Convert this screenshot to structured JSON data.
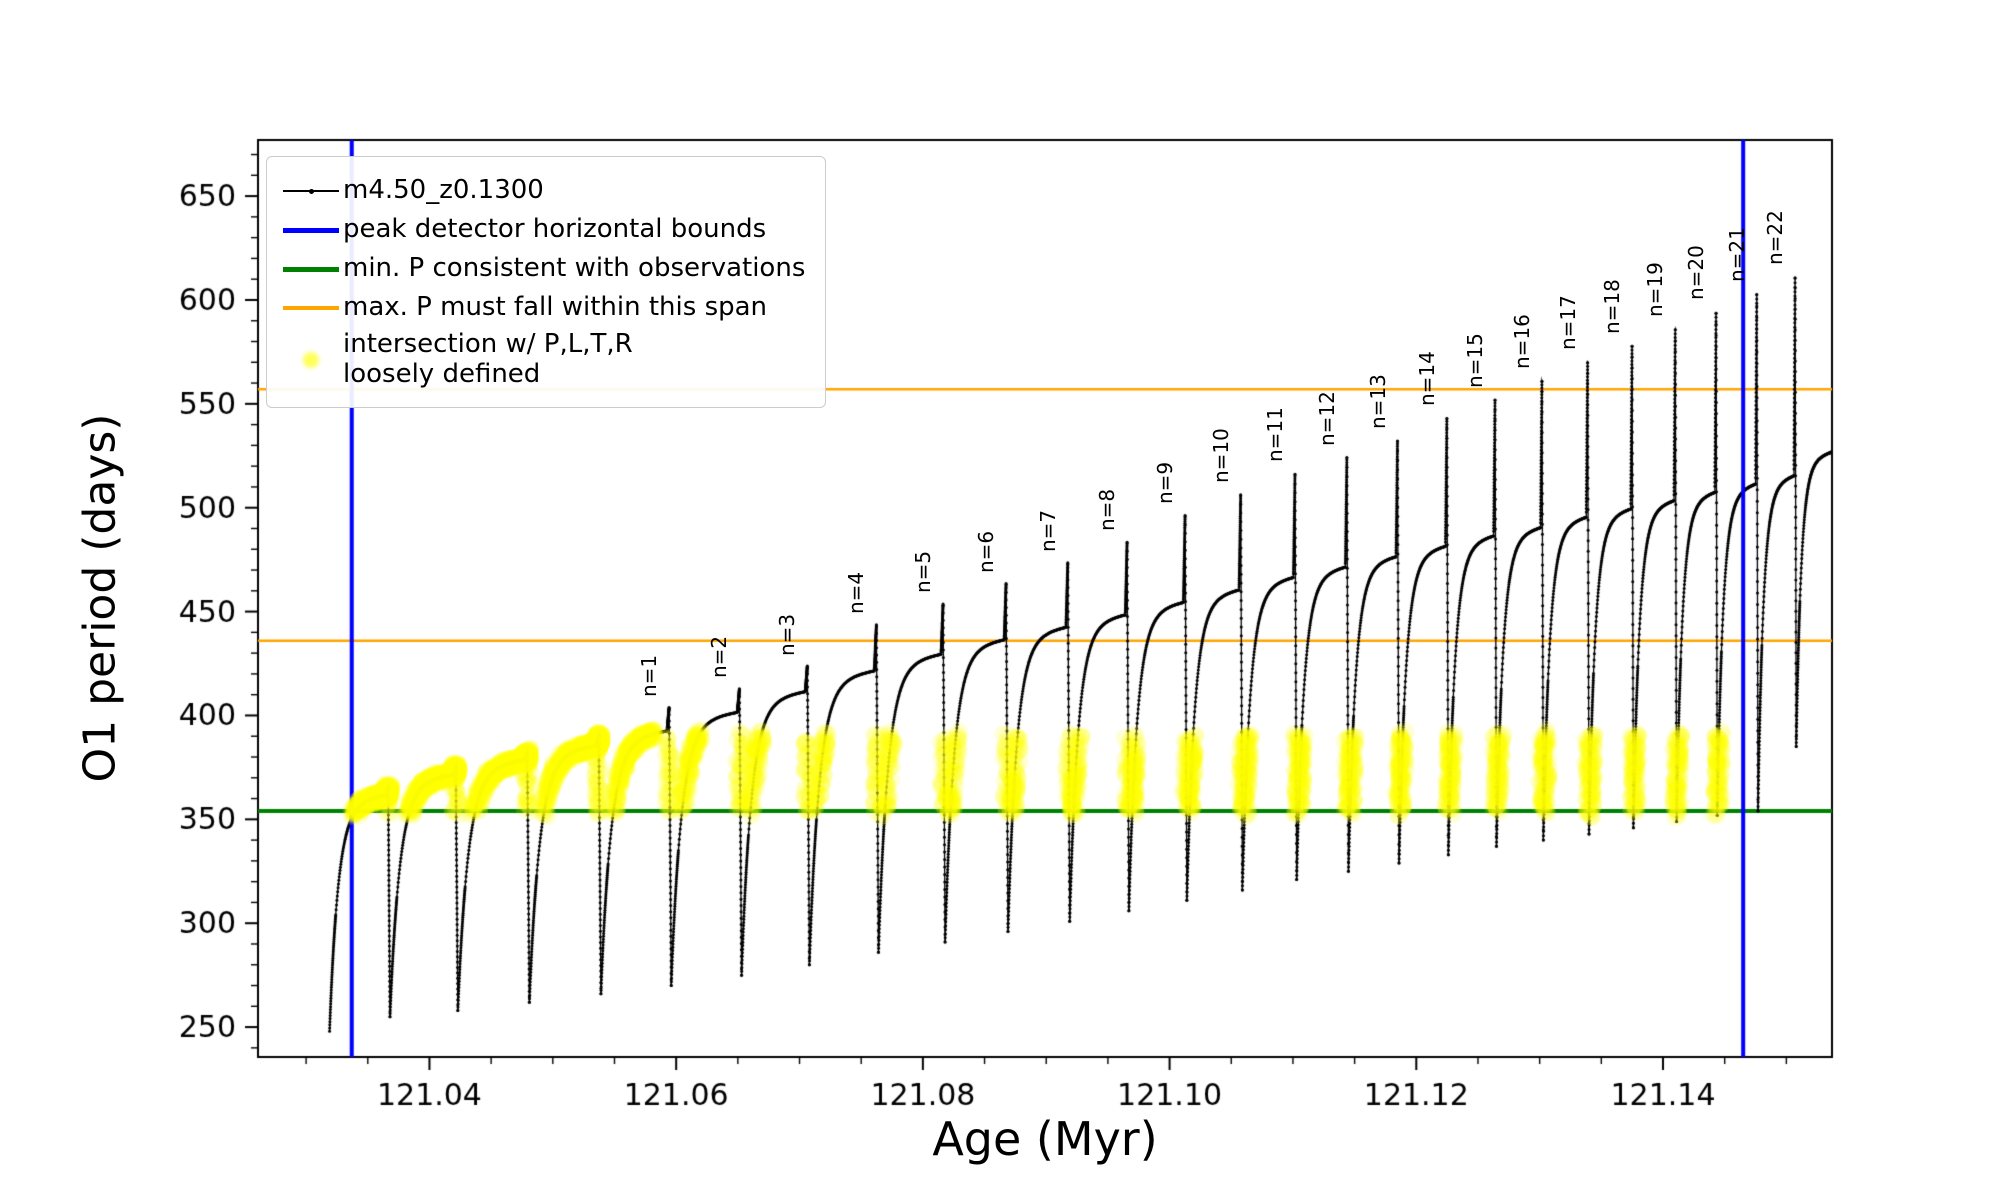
{
  "axes": {
    "xlabel": "Age (Myr)",
    "ylabel": "O1 period (days)"
  },
  "legend": {
    "entries": [
      {
        "label": "m4.50_z0.1300",
        "type": "series-line",
        "color": "#000000"
      },
      {
        "label": "peak detector horizontal bounds",
        "type": "vline",
        "color": "#0000ff"
      },
      {
        "label": "min. P consistent with observations",
        "type": "hline",
        "color": "#008000"
      },
      {
        "label": "max. P must fall within this span",
        "type": "hline",
        "color": "#ffa500"
      },
      {
        "label": "intersection w/ P,L,T,R\nloosely defined",
        "type": "scatter",
        "color": "#ffff00"
      }
    ]
  },
  "chart_data": {
    "type": "line",
    "title": "",
    "xlabel": "Age (Myr)",
    "ylabel": "O1 period (days)",
    "series_name": "m4.50_z0.1300",
    "xlim": [
      121.0261,
      121.1537
    ],
    "ylim": [
      235.6,
      677
    ],
    "xticks": [
      {
        "v": 121.04,
        "label": "121.04"
      },
      {
        "v": 121.06,
        "label": "121.06"
      },
      {
        "v": 121.08,
        "label": "121.08"
      },
      {
        "v": 121.1,
        "label": "121.10"
      },
      {
        "v": 121.12,
        "label": "121.12"
      },
      {
        "v": 121.14,
        "label": "121.14"
      }
    ],
    "yticks": [
      {
        "v": 250,
        "label": "250"
      },
      {
        "v": 300,
        "label": "300"
      },
      {
        "v": 350,
        "label": "350"
      },
      {
        "v": 400,
        "label": "400"
      },
      {
        "v": 450,
        "label": "450"
      },
      {
        "v": 500,
        "label": "500"
      },
      {
        "v": 550,
        "label": "550"
      },
      {
        "v": 600,
        "label": "600"
      },
      {
        "v": 650,
        "label": "650"
      }
    ],
    "colors": {
      "series": "#000000",
      "peak_bounds": "#0000ff",
      "min_p": "#008000",
      "max_p": "#ffa500",
      "intersection": "#ffff00"
    },
    "vlines": {
      "label": "peak detector horizontal bounds",
      "ages": [
        121.0337,
        121.1465
      ]
    },
    "hlines": {
      "min_p_consistent": 354,
      "max_p_span": [
        436,
        557
      ]
    },
    "intersection_band": {
      "ymin": 353,
      "ymax": 391
    },
    "cycles": {
      "bounds": [
        121.0319,
        121.0368,
        121.0423,
        121.0481,
        121.0539,
        121.0596,
        121.0653,
        121.0708,
        121.0764,
        121.0818,
        121.0869,
        121.0919,
        121.0967,
        121.1014,
        121.1059,
        121.1103,
        121.1145,
        121.1186,
        121.1226,
        121.1265,
        121.1303,
        121.134,
        121.1376,
        121.1411,
        121.1444,
        121.1477,
        121.1508,
        121.1537
      ],
      "min": [
        248,
        255,
        258,
        262,
        266,
        270,
        275,
        280,
        286,
        291,
        296,
        301,
        306,
        311,
        316,
        321,
        325,
        329,
        333,
        337,
        340,
        343,
        346,
        349,
        352,
        354,
        385
      ],
      "plateau": [
        362,
        372,
        379,
        386,
        393,
        402,
        412,
        422,
        430,
        437,
        443,
        449,
        455,
        461,
        467,
        472,
        477,
        482,
        487,
        491,
        496,
        500,
        504,
        508,
        512,
        516,
        527
      ],
      "spike": [
        365,
        375,
        382,
        390,
        404,
        413,
        424,
        444,
        454,
        464,
        474,
        484,
        497,
        507,
        517,
        525,
        533,
        544,
        553,
        562,
        571,
        579,
        587,
        595,
        604,
        612,
        null
      ],
      "label": [
        null,
        null,
        null,
        null,
        "n=1",
        "n=2",
        "n=3",
        "n=4",
        "n=5",
        "n=6",
        "n=7",
        "n=8",
        "n=9",
        "n=10",
        "n=11",
        "n=12",
        "n=13",
        "n=14",
        "n=15",
        "n=16",
        "n=17",
        "n=18",
        "n=19",
        "n=20",
        "n=21",
        "n=22",
        null
      ]
    }
  }
}
